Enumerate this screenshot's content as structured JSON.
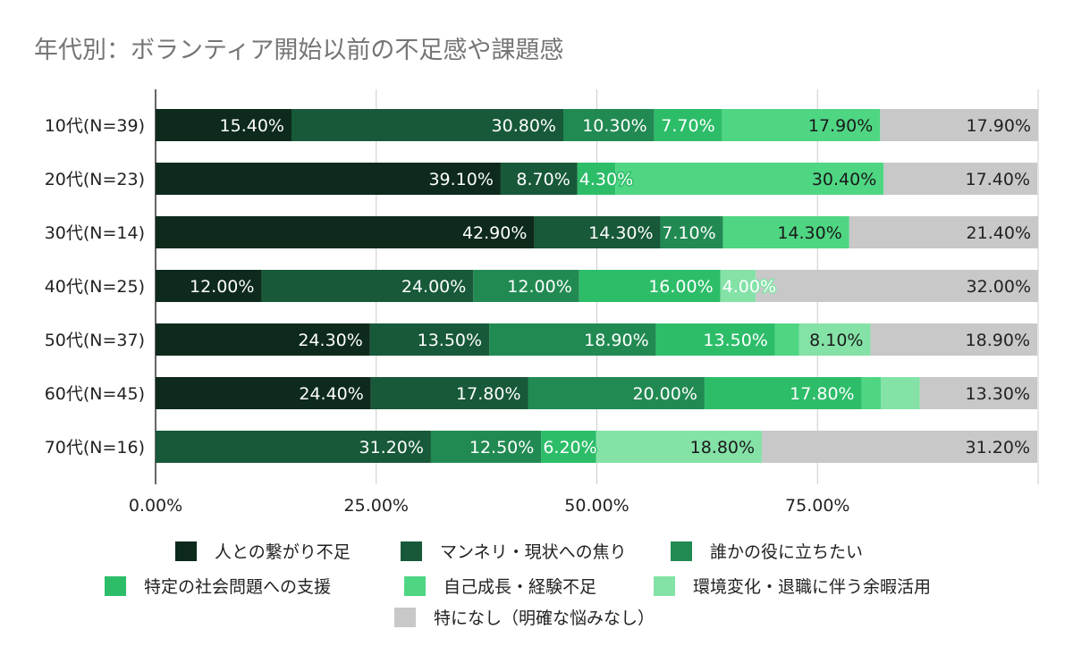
{
  "chart_data": {
    "type": "bar",
    "orientation": "horizontal",
    "stacked": true,
    "title": "年代別：ボランティア開始以前の不足感や課題感",
    "categories": [
      "10代(N=39)",
      "20代(N=23)",
      "30代(N=14)",
      "40代(N=25)",
      "50代(N=37)",
      "60代(N=45)",
      "70代(N=16)"
    ],
    "series": [
      {
        "name": "人との繋がり不足",
        "color": "#0d2a1c",
        "values": [
          15.4,
          39.1,
          42.9,
          12.0,
          24.3,
          24.4,
          0
        ],
        "labels": [
          "15.40%",
          "39.10%",
          "42.90%",
          "12.00%",
          "24.30%",
          "24.40%",
          ""
        ]
      },
      {
        "name": "マンネリ・現状への焦り",
        "color": "#175939",
        "values": [
          30.8,
          8.7,
          14.3,
          24.0,
          13.5,
          17.8,
          31.2
        ],
        "labels": [
          "30.80%",
          "8.70%",
          "14.30%",
          "24.00%",
          "13.50%",
          "17.80%",
          "31.20%"
        ]
      },
      {
        "name": "誰かの役に立ちたい",
        "color": "#218a52",
        "values": [
          10.3,
          0,
          7.1,
          12.0,
          18.9,
          20.0,
          12.5
        ],
        "labels": [
          "10.30%",
          "",
          "7.10%",
          "12.00%",
          "18.90%",
          "20.00%",
          "12.50%"
        ]
      },
      {
        "name": "特定の社会問題への支援",
        "color": "#2dbd69",
        "values": [
          7.7,
          4.3,
          0,
          16.0,
          13.5,
          17.8,
          6.2
        ],
        "labels": [
          "7.70%",
          "4.30%",
          "",
          "16.00%",
          "13.50%",
          "17.80%",
          "6.20%"
        ]
      },
      {
        "name": "自己成長・経験不足",
        "color": "#4fd683",
        "values": [
          17.9,
          30.4,
          14.3,
          0,
          2.7,
          2.2,
          0
        ],
        "labels": [
          "17.90%",
          "30.40%",
          "14.30%",
          "",
          "",
          "",
          ""
        ]
      },
      {
        "name": "環境変化・退職に伴う余暇活用",
        "color": "#84e2a7",
        "values": [
          0,
          0,
          0,
          4.0,
          8.1,
          4.4,
          18.8
        ],
        "labels": [
          "",
          "",
          "",
          "4.00%",
          "8.10%",
          "",
          "18.80%"
        ]
      },
      {
        "name": "特になし（明確な悩みなし）",
        "color": "#c8c8c8",
        "values": [
          17.9,
          17.4,
          21.4,
          32.0,
          18.9,
          13.3,
          31.2
        ],
        "labels": [
          "17.90%",
          "17.40%",
          "21.40%",
          "32.00%",
          "18.90%",
          "13.30%",
          "31.20%"
        ]
      }
    ],
    "xlim": [
      0,
      100
    ],
    "x_ticks": [
      0,
      25,
      50,
      75,
      100
    ],
    "x_tick_labels": [
      "0.00%",
      "25.00%",
      "50.00%",
      "75.00%",
      ""
    ],
    "grid": true,
    "legend_position": "bottom"
  }
}
